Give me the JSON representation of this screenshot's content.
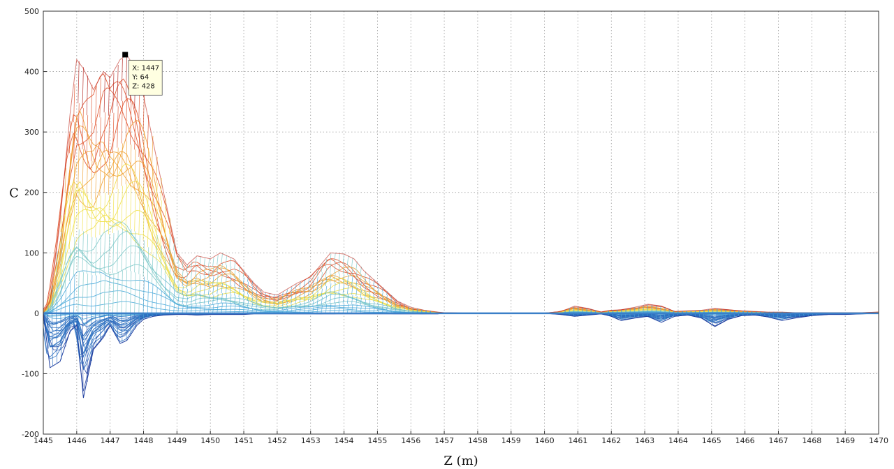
{
  "chart_data": {
    "type": "line",
    "title": "",
    "xlabel": "Z (m)",
    "ylabel": "C",
    "xlim": [
      1445,
      1470
    ],
    "ylim": [
      -200,
      500
    ],
    "grid": true,
    "x_ticks": [
      "1445",
      "1446",
      "1447",
      "1448",
      "1449",
      "1450",
      "1451",
      "1452",
      "1453",
      "1454",
      "1455",
      "1456",
      "1457",
      "1458",
      "1459",
      "1460",
      "1461",
      "1462",
      "1463",
      "1464",
      "1465",
      "1466",
      "1467",
      "1468",
      "1469",
      "1470"
    ],
    "y_ticks": [
      "500",
      "400",
      "300",
      "200",
      "100",
      "0",
      "-100",
      "-200"
    ],
    "colormap": [
      "#1f3fa0",
      "#2a6fc0",
      "#49a8d8",
      "#7cc8c8",
      "#f0e04a",
      "#f0a030",
      "#e0502a",
      "#b0201a"
    ],
    "envelope": {
      "x": [
        1445,
        1445.2,
        1445.5,
        1445.8,
        1446,
        1446.2,
        1446.5,
        1446.8,
        1447,
        1447.3,
        1447.5,
        1447.8,
        1448,
        1448.3,
        1448.6,
        1449,
        1449.3,
        1449.6,
        1450,
        1450.3,
        1450.7,
        1451,
        1451.3,
        1451.6,
        1452,
        1452.3,
        1452.6,
        1453,
        1453.3,
        1453.6,
        1454,
        1454.3,
        1454.6,
        1455,
        1455.3,
        1455.6,
        1456,
        1456.4,
        1456.8,
        1457,
        1458,
        1459,
        1460,
        1460.5,
        1460.9,
        1461.3,
        1461.7,
        1462,
        1462.3,
        1462.7,
        1463.1,
        1463.5,
        1463.9,
        1464.3,
        1464.7,
        1465.1,
        1465.5,
        1465.9,
        1466.3,
        1466.7,
        1467.1,
        1467.5,
        1468,
        1468.5,
        1469,
        1469.5,
        1470
      ],
      "top": [
        0,
        20,
        150,
        330,
        420,
        405,
        370,
        400,
        390,
        420,
        428,
        400,
        360,
        280,
        200,
        100,
        80,
        95,
        90,
        100,
        90,
        70,
        50,
        35,
        30,
        40,
        50,
        60,
        80,
        100,
        98,
        90,
        70,
        50,
        35,
        20,
        10,
        5,
        2,
        1,
        0,
        0,
        0,
        3,
        12,
        8,
        2,
        5,
        6,
        10,
        15,
        12,
        3,
        4,
        5,
        8,
        6,
        4,
        3,
        2,
        2,
        1,
        1,
        1,
        1,
        1,
        2
      ],
      "bottom": [
        0,
        -90,
        -80,
        -30,
        -20,
        -140,
        -60,
        -40,
        -20,
        -50,
        -45,
        -20,
        -10,
        -5,
        -3,
        -2,
        -2,
        -3,
        -2,
        -2,
        -2,
        -2,
        -1,
        -1,
        -1,
        -1,
        -1,
        -1,
        -1,
        -1,
        -1,
        -1,
        -1,
        -1,
        -1,
        -1,
        -1,
        -1,
        -1,
        0,
        0,
        0,
        0,
        -2,
        -5,
        -3,
        -1,
        -5,
        -12,
        -8,
        -5,
        -15,
        -5,
        -3,
        -8,
        -22,
        -10,
        -4,
        -3,
        -6,
        -12,
        -8,
        -4,
        -2,
        -2,
        -1,
        0
      ]
    },
    "data_tip": {
      "marker": {
        "x": 1447.45,
        "y": 428
      },
      "lines": [
        "X: 1447",
        "Y: 64",
        "Z: 428"
      ]
    }
  }
}
